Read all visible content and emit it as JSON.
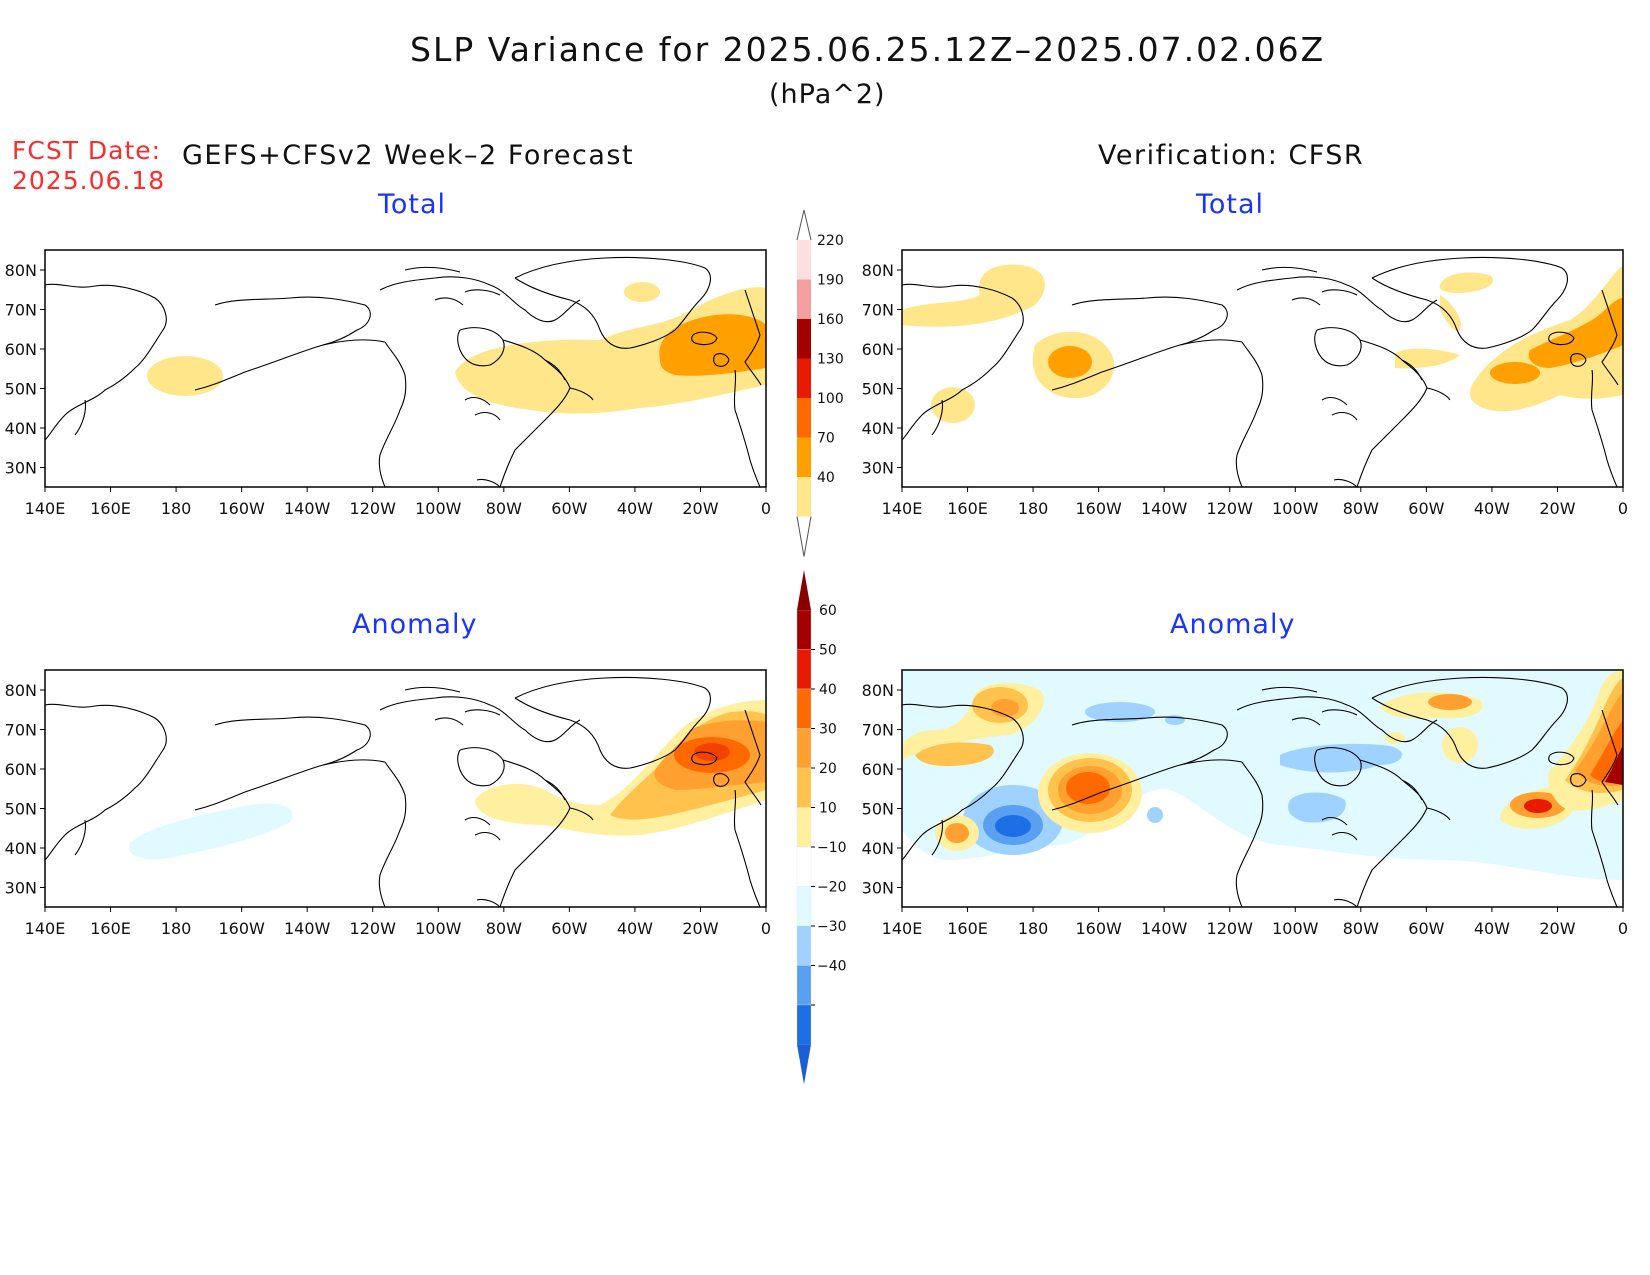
{
  "title": "SLP Variance for 2025.06.25.12Z–2025.07.02.06Z",
  "units": "(hPa^2)",
  "fcst_label": "FCST Date:",
  "fcst_date": "2025.06.18",
  "left_header": "GEFS+CFSv2 Week–2 Forecast",
  "right_header": "Verification: CFSR",
  "lon_labels": [
    "140E",
    "160E",
    "180",
    "160W",
    "140W",
    "120W",
    "100W",
    "80W",
    "60W",
    "40W",
    "20W",
    "0"
  ],
  "lat_labels": [
    "80N",
    "70N",
    "60N",
    "50N",
    "40N",
    "30N"
  ],
  "colorbar_total": {
    "levels": [
      "40",
      "70",
      "100",
      "130",
      "160",
      "190",
      "220"
    ],
    "colors": [
      "#ffe68a",
      "#ffa000",
      "#ff6a00",
      "#e81a00",
      "#a50000",
      "#f4a0a0",
      "#fce0e0"
    ]
  },
  "colorbar_anomaly": {
    "levels": [
      "60",
      "50",
      "40",
      "30",
      "20",
      "10",
      "−10",
      "−20",
      "−30",
      "−40"
    ],
    "colors": [
      "#a50000",
      "#e81a00",
      "#ff6a00",
      "#ffa030",
      "#ffc34d",
      "#fff0a0",
      "#ffffff",
      "#e0faff",
      "#a0d2ff",
      "#5aa0f0",
      "#1e6ee6"
    ]
  },
  "panels": [
    {
      "id": "forecast-total",
      "title": "Total"
    },
    {
      "id": "verification-total",
      "title": "Total"
    },
    {
      "id": "forecast-anomaly",
      "title": "Anomaly"
    },
    {
      "id": "verification-anomaly",
      "title": "Anomaly"
    }
  ]
}
